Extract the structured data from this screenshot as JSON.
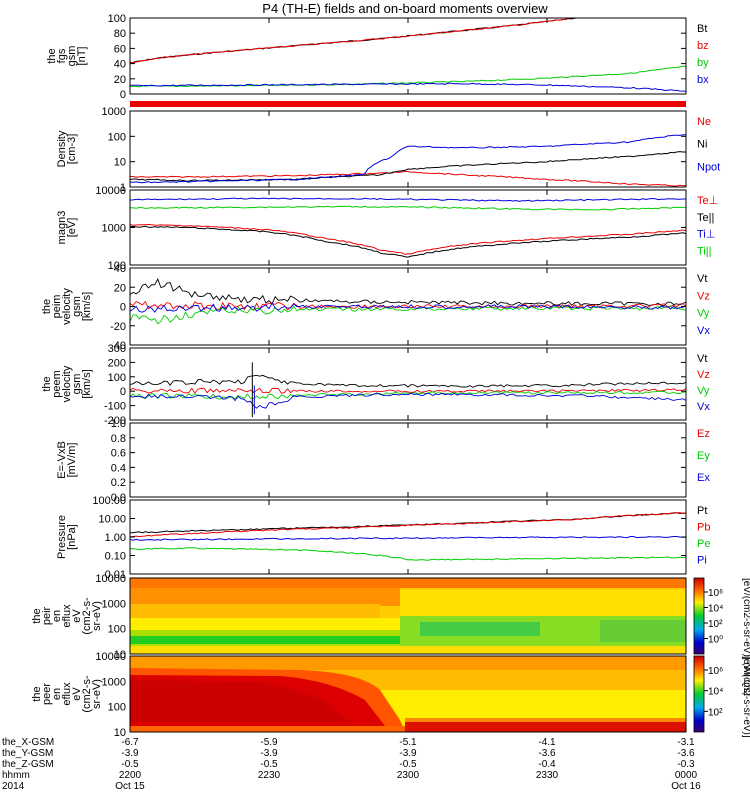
{
  "title": "P4 (TH-E) fields and on-board moments overview",
  "colors": {
    "black": "#000000",
    "red": "#ee0000",
    "green": "#00cc00",
    "blue": "#0000dd"
  },
  "chart_data": [
    {
      "type": "line",
      "ylabel": [
        "the",
        "fgs",
        "gsm",
        "[nT]"
      ],
      "yticks": [
        "100",
        "80",
        "60",
        "40",
        "20",
        "0"
      ],
      "ylim": [
        -10,
        100
      ],
      "legend": [
        {
          "label": "Bt",
          "color": "#000000"
        },
        {
          "label": "bz",
          "color": "#ee0000"
        },
        {
          "label": "by",
          "color": "#00cc00"
        },
        {
          "label": "bx",
          "color": "#0000dd"
        }
      ],
      "series": [
        {
          "color": "#000000",
          "x": [
            0,
            0.05,
            0.15,
            0.3,
            0.45,
            0.6,
            0.7,
            0.8,
            1
          ],
          "y": [
            35,
            42,
            50,
            60,
            70,
            82,
            90,
            100,
            120
          ]
        },
        {
          "color": "#ee0000",
          "x": [
            0,
            0.05,
            0.15,
            0.3,
            0.45,
            0.6,
            0.7,
            0.8,
            1
          ],
          "y": [
            35,
            42,
            50,
            60,
            70,
            82,
            90,
            100,
            120
          ]
        },
        {
          "color": "#00cc00",
          "x": [
            0,
            0.2,
            0.4,
            0.6,
            0.75,
            0.9,
            1
          ],
          "y": [
            1,
            2,
            4,
            8,
            13,
            20,
            30
          ]
        },
        {
          "color": "#0000dd",
          "x": [
            0,
            0.2,
            0.4,
            0.6,
            0.75,
            0.9,
            1
          ],
          "y": [
            2,
            3,
            4,
            5,
            3,
            -1,
            -6
          ]
        }
      ]
    },
    {
      "type": "line",
      "ylabel": [
        "Density",
        "[cm-3]"
      ],
      "yticks": [
        "1000",
        "100",
        "10",
        "1"
      ],
      "ylim": [
        1,
        1000
      ],
      "log": true,
      "legend": [
        {
          "label": "Ne",
          "color": "#ee0000"
        },
        {
          "label": "Ni",
          "color": "#000000"
        },
        {
          "label": "Npot",
          "color": "#0000dd"
        }
      ],
      "series": [
        {
          "color": "#ee0000",
          "x": [
            0,
            0.1,
            0.3,
            0.45,
            0.5,
            0.6,
            0.75,
            0.9,
            1
          ],
          "y": [
            2.5,
            2.5,
            2.8,
            3.5,
            4,
            3,
            2,
            1.3,
            1.1
          ]
        },
        {
          "color": "#000000",
          "x": [
            0,
            0.1,
            0.3,
            0.45,
            0.5,
            0.6,
            0.75,
            0.9,
            1
          ],
          "y": [
            2,
            1.8,
            2,
            3,
            5,
            7,
            10,
            16,
            25
          ]
        },
        {
          "color": "#0000dd",
          "x": [
            0,
            0.1,
            0.3,
            0.42,
            0.47,
            0.5,
            0.6,
            0.75,
            0.9,
            1
          ],
          "y": [
            1.5,
            1.6,
            2,
            3,
            15,
            40,
            35,
            40,
            60,
            120
          ]
        }
      ]
    },
    {
      "type": "line",
      "ylabel": [
        "magn3",
        "[eV]"
      ],
      "yticks": [
        "10000",
        "1000",
        "100"
      ],
      "ylim": [
        30,
        12000
      ],
      "log": true,
      "legend": [
        {
          "label": "Te⊥",
          "color": "#ee0000"
        },
        {
          "label": "Te||",
          "color": "#000000"
        },
        {
          "label": "Ti⊥",
          "color": "#0000dd"
        },
        {
          "label": "Ti||",
          "color": "#00cc00"
        }
      ],
      "series": [
        {
          "color": "#ee0000",
          "x": [
            0,
            0.1,
            0.25,
            0.35,
            0.45,
            0.5,
            0.6,
            0.75,
            0.9,
            1
          ],
          "y": [
            750,
            700,
            500,
            250,
            100,
            70,
            150,
            250,
            350,
            480
          ]
        },
        {
          "color": "#000000",
          "x": [
            0,
            0.1,
            0.25,
            0.35,
            0.45,
            0.5,
            0.6,
            0.75,
            0.9,
            1
          ],
          "y": [
            650,
            600,
            420,
            200,
            80,
            55,
            120,
            200,
            280,
            380
          ]
        },
        {
          "color": "#0000dd",
          "x": [
            0,
            0.2,
            0.4,
            0.55,
            0.7,
            0.85,
            1
          ],
          "y": [
            5500,
            6000,
            6000,
            5500,
            5000,
            5500,
            6000
          ]
        },
        {
          "color": "#00cc00",
          "x": [
            0,
            0.2,
            0.4,
            0.55,
            0.7,
            0.85,
            1
          ],
          "y": [
            2800,
            3000,
            3200,
            3000,
            2600,
            2500,
            3000
          ]
        }
      ]
    },
    {
      "type": "line",
      "ylabel": [
        "the",
        "peim",
        "velocity",
        "gsm",
        "[km/s]"
      ],
      "yticks": [
        "40",
        "20",
        "0",
        "-20",
        "40"
      ],
      "ylim": [
        -40,
        40
      ],
      "legend": [
        {
          "label": "Vt",
          "color": "#000000"
        },
        {
          "label": "Vz",
          "color": "#ee0000"
        },
        {
          "label": "Vy",
          "color": "#00cc00"
        },
        {
          "label": "Vx",
          "color": "#0000dd"
        }
      ],
      "series": [
        {
          "color": "#000000",
          "x": [
            0,
            0.05,
            0.1,
            0.2,
            0.4,
            0.6,
            0.8,
            1
          ],
          "y": [
            15,
            25,
            15,
            8,
            5,
            4,
            3,
            3
          ]
        },
        {
          "color": "#ee0000",
          "x": [
            0,
            0.1,
            0.3,
            0.6,
            1
          ],
          "y": [
            2,
            1,
            0,
            0,
            1
          ]
        },
        {
          "color": "#00cc00",
          "x": [
            0,
            0.05,
            0.1,
            0.2,
            0.4,
            0.6,
            0.8,
            1
          ],
          "y": [
            -12,
            -15,
            -8,
            -4,
            -3,
            -2,
            -2,
            -2
          ]
        },
        {
          "color": "#0000dd",
          "x": [
            0,
            0.1,
            0.3,
            0.6,
            1
          ],
          "y": [
            -3,
            -2,
            0,
            0,
            -1
          ]
        }
      ]
    },
    {
      "type": "line",
      "ylabel": [
        "the",
        "peem",
        "velocity",
        "gsm",
        "[km/s]"
      ],
      "yticks": [
        "300",
        "200",
        "100",
        "0",
        "-100",
        "-200"
      ],
      "ylim": [
        -200,
        300
      ],
      "legend": [
        {
          "label": "Vt",
          "color": "#000000"
        },
        {
          "label": "Vz",
          "color": "#ee0000"
        },
        {
          "label": "Vy",
          "color": "#00cc00"
        },
        {
          "label": "Vx",
          "color": "#0000dd"
        }
      ],
      "series": [
        {
          "color": "#000000",
          "x": [
            0,
            0.1,
            0.2,
            0.23,
            0.3,
            0.4,
            0.6,
            0.8,
            0.9,
            1
          ],
          "y": [
            50,
            60,
            70,
            110,
            50,
            40,
            35,
            40,
            55,
            60
          ]
        },
        {
          "color": "#ee0000",
          "x": [
            0,
            0.3,
            0.6,
            0.9,
            1
          ],
          "y": [
            5,
            0,
            0,
            5,
            10
          ]
        },
        {
          "color": "#00cc00",
          "x": [
            0,
            0.2,
            0.4,
            0.6,
            1
          ],
          "y": [
            -30,
            -40,
            -20,
            -10,
            -10
          ]
        },
        {
          "color": "#0000dd",
          "x": [
            0,
            0.2,
            0.23,
            0.3,
            0.5,
            0.8,
            1
          ],
          "y": [
            -30,
            -50,
            -120,
            -40,
            -20,
            -30,
            -60
          ]
        }
      ]
    },
    {
      "type": "line",
      "ylabel": [
        "E=-VxB",
        "[mV/m]"
      ],
      "yticks": [
        "1.0",
        "0.8",
        "0.6",
        "0.4",
        "0.2",
        "0.0"
      ],
      "ylim": [
        0,
        1
      ],
      "legend": [
        {
          "label": "Ez",
          "color": "#ee0000"
        },
        {
          "label": "Ey",
          "color": "#00cc00"
        },
        {
          "label": "Ex",
          "color": "#0000dd"
        }
      ],
      "series": []
    },
    {
      "type": "line",
      "ylabel": [
        "Pressure",
        "[nPa]"
      ],
      "yticks": [
        "100.00",
        "10.00",
        "1.00",
        "0.10",
        "0.01"
      ],
      "ylim": [
        0.01,
        100
      ],
      "log": true,
      "legend": [
        {
          "label": "Pt",
          "color": "#000000"
        },
        {
          "label": "Pb",
          "color": "#ee0000"
        },
        {
          "label": "Pe",
          "color": "#00cc00"
        },
        {
          "label": "Pi",
          "color": "#0000dd"
        }
      ],
      "series": [
        {
          "color": "#000000",
          "x": [
            0,
            0.2,
            0.4,
            0.6,
            0.8,
            1
          ],
          "y": [
            1.7,
            2.5,
            3.6,
            5.5,
            9,
            20
          ]
        },
        {
          "color": "#ee0000",
          "x": [
            0,
            0.2,
            0.4,
            0.6,
            0.8,
            1
          ],
          "y": [
            1.0,
            2.0,
            3.2,
            5.3,
            8.8,
            20
          ]
        },
        {
          "color": "#0000dd",
          "x": [
            0,
            0.3,
            0.6,
            0.9,
            1
          ],
          "y": [
            0.7,
            0.8,
            0.9,
            1.0,
            1.0
          ]
        },
        {
          "color": "#00cc00",
          "x": [
            0,
            0.1,
            0.3,
            0.45,
            0.5,
            0.6,
            0.8,
            1
          ],
          "y": [
            0.22,
            0.25,
            0.2,
            0.1,
            0.06,
            0.06,
            0.07,
            0.08
          ]
        }
      ]
    },
    {
      "type": "heatmap",
      "ylabel": [
        "the",
        "peir",
        "en",
        "eflux",
        "eV",
        "(cm2-s-",
        "sr-eV)"
      ],
      "yticks": [
        "10000",
        "1000",
        "100",
        "10"
      ],
      "ylim": [
        5,
        25000
      ],
      "log": true,
      "colorbar_label": "[eV/(cm2-s-sr-eV)] (All Qs)",
      "colorbar_ticks": [
        "10⁶",
        "10⁴",
        "10²",
        "10⁰"
      ]
    },
    {
      "type": "heatmap",
      "ylabel": [
        "the",
        "peer",
        "en",
        "eflux",
        "eV",
        "(cm2-s-",
        "sr-eV)"
      ],
      "yticks": [
        "10000",
        "1000",
        "100",
        "10"
      ],
      "ylim": [
        5,
        25000
      ],
      "log": true,
      "colorbar_label": "[eV/(cm2-s-sr-eV)]",
      "colorbar_ticks": [
        "10⁶",
        "10⁴",
        "10²"
      ]
    }
  ],
  "xaxis": {
    "rows": [
      {
        "label": "the_X-GSM",
        "values": [
          "-6.7",
          "-5.9",
          "-5.1",
          "-4.1",
          "-3.1"
        ]
      },
      {
        "label": "the_Y-GSM",
        "values": [
          "-3.9",
          "-3.9",
          "-3.9",
          "-3.6",
          "-3.6"
        ]
      },
      {
        "label": "the_Z-GSM",
        "values": [
          "-0.5",
          "-0.5",
          "-0.5",
          "-0.4",
          "-0.3"
        ]
      },
      {
        "label": "hhmm",
        "values": [
          "2200",
          "2230",
          "2300",
          "2330",
          "0000"
        ]
      },
      {
        "label": "2014",
        "values": [
          "Oct 15",
          "",
          "",
          "",
          "Oct 16"
        ]
      }
    ]
  }
}
